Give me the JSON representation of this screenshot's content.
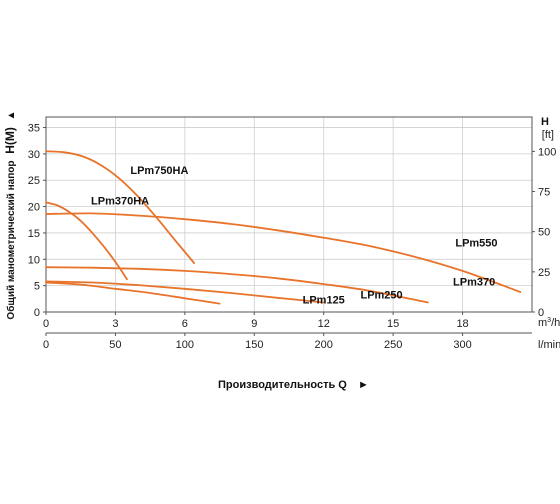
{
  "chart_data": {
    "type": "line",
    "y_left": {
      "label": "Общий манометрический напор",
      "symbol": "H(M)",
      "arrow": "▲",
      "range": [
        0,
        37
      ],
      "ticks": [
        0,
        5,
        10,
        15,
        20,
        25,
        30,
        35
      ]
    },
    "y_right": {
      "label": "H",
      "unit": "[ft]",
      "range_ft": [
        0,
        121.4
      ],
      "ticks": [
        0,
        25,
        50,
        75,
        100
      ]
    },
    "x_top": {
      "unit": "m³/h",
      "unit_base": "m",
      "unit_sup": "3",
      "unit_tail": "/h",
      "range": [
        0,
        21
      ],
      "ticks": [
        0,
        3,
        6,
        9,
        12,
        15,
        18
      ]
    },
    "x_bottom": {
      "unit": "l/min",
      "range": [
        0,
        350
      ],
      "ticks": [
        0,
        50,
        100,
        150,
        200,
        250,
        300
      ]
    },
    "xlabel": "Производительность Q",
    "xlabel_arrow": "►",
    "grid": true,
    "series": [
      {
        "name": "LPm750HA",
        "color": "#e8732a",
        "x": [
          0,
          0.8,
          1.6,
          2.4,
          3.2,
          4.0,
          4.8,
          5.6,
          6.4
        ],
        "y": [
          30.5,
          30.3,
          29.5,
          27.8,
          25.2,
          21.8,
          17.8,
          13.5,
          9.3
        ]
      },
      {
        "name": "LPm370HA",
        "color": "#e8732a",
        "x": [
          0,
          0.5,
          1.0,
          1.5,
          2.0,
          2.5,
          3.0,
          3.5
        ],
        "y": [
          20.8,
          20.2,
          19.0,
          17.3,
          15.0,
          12.4,
          9.5,
          6.2
        ]
      },
      {
        "name": "LPm550",
        "color": "#e8732a",
        "x": [
          0,
          2,
          4,
          6,
          8,
          10,
          12,
          14,
          16,
          18,
          20.5
        ],
        "y": [
          18.6,
          18.7,
          18.3,
          17.6,
          16.7,
          15.5,
          14.1,
          12.5,
          10.4,
          7.8,
          3.8
        ]
      },
      {
        "name": "LPm370",
        "color": "#e8732a",
        "x": [
          0,
          2,
          4,
          6,
          8,
          10,
          12,
          14,
          16.5
        ],
        "y": [
          8.5,
          8.4,
          8.2,
          7.8,
          7.2,
          6.4,
          5.3,
          4.0,
          1.8
        ]
      },
      {
        "name": "LPm250",
        "color": "#e8732a",
        "x": [
          0,
          2,
          4,
          6,
          8,
          10,
          12
        ],
        "y": [
          5.8,
          5.6,
          5.1,
          4.4,
          3.6,
          2.7,
          1.8
        ]
      },
      {
        "name": "LPm125",
        "color": "#e8732a",
        "x": [
          0,
          1.5,
          3,
          4.5,
          6,
          7.5
        ],
        "y": [
          5.6,
          5.2,
          4.4,
          3.6,
          2.6,
          1.6
        ]
      }
    ]
  }
}
